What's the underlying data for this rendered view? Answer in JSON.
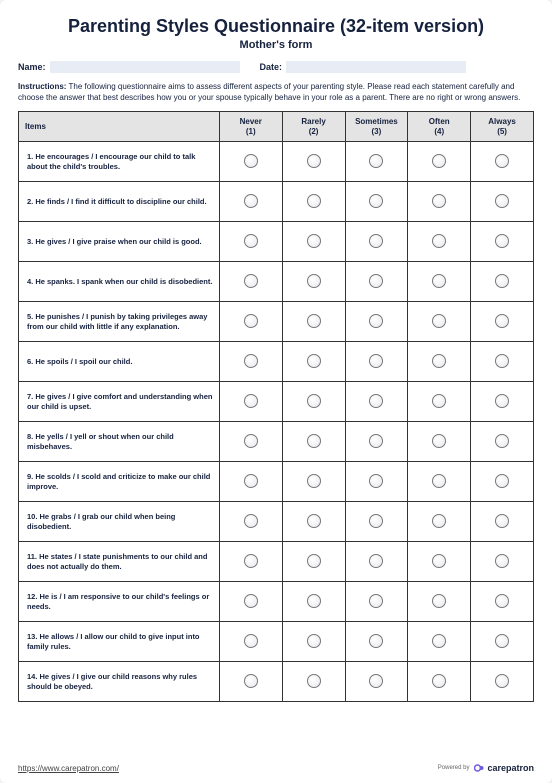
{
  "title": "Parenting Styles Questionnaire (32-item version)",
  "subtitle": "Mother's form",
  "fields": {
    "name_label": "Name:",
    "date_label": "Date:"
  },
  "instructions_label": "Instructions:",
  "instructions_text": " The following questionnaire aims to assess different aspects of your parenting style. Please read each statement carefully and choose the answer that best describes how you or your spouse typically behave in your role as a parent. There are no right or wrong answers.",
  "table": {
    "headers": {
      "items": "Items",
      "c1_a": "Never",
      "c1_b": "(1)",
      "c2_a": "Rarely",
      "c2_b": "(2)",
      "c3_a": "Sometimes",
      "c3_b": "(3)",
      "c4_a": "Often",
      "c4_b": "(4)",
      "c5_a": "Always",
      "c5_b": "(5)"
    },
    "items": [
      "1.  He encourages / I encourage our child to talk about the child's troubles.",
      "2.   He finds / I find it difficult to discipline our child.",
      "3.  He gives / I give praise when our child is good.",
      "4.  He spanks. I spank when our child is disobedient.",
      "5.  He punishes / I punish by taking privileges away from our child with little if any explanation.",
      "6.   He spoils / I spoil our child.",
      "7.   He gives / I  give comfort and understanding when our child is upset.",
      "8.  He yells / I yell or shout when our child misbehaves.",
      "9.  He scolds / I scold and criticize to make our child improve.",
      "10.  He grabs / I  grab our child when being disobedient.",
      "11.  He states / I state punishments to our child and does not actually do them.",
      "12.  He is / I am responsive to our child's feelings or needs.",
      "13.  He allows / I allow our child to give input into family rules.",
      "14.  He gives / I give our child reasons why rules should be obeyed."
    ]
  },
  "footer": {
    "url": "https://www.carepatron.com/",
    "powered": "Powered by",
    "brand": "carepatron"
  },
  "colors": {
    "logo": "#6b5ce7"
  }
}
